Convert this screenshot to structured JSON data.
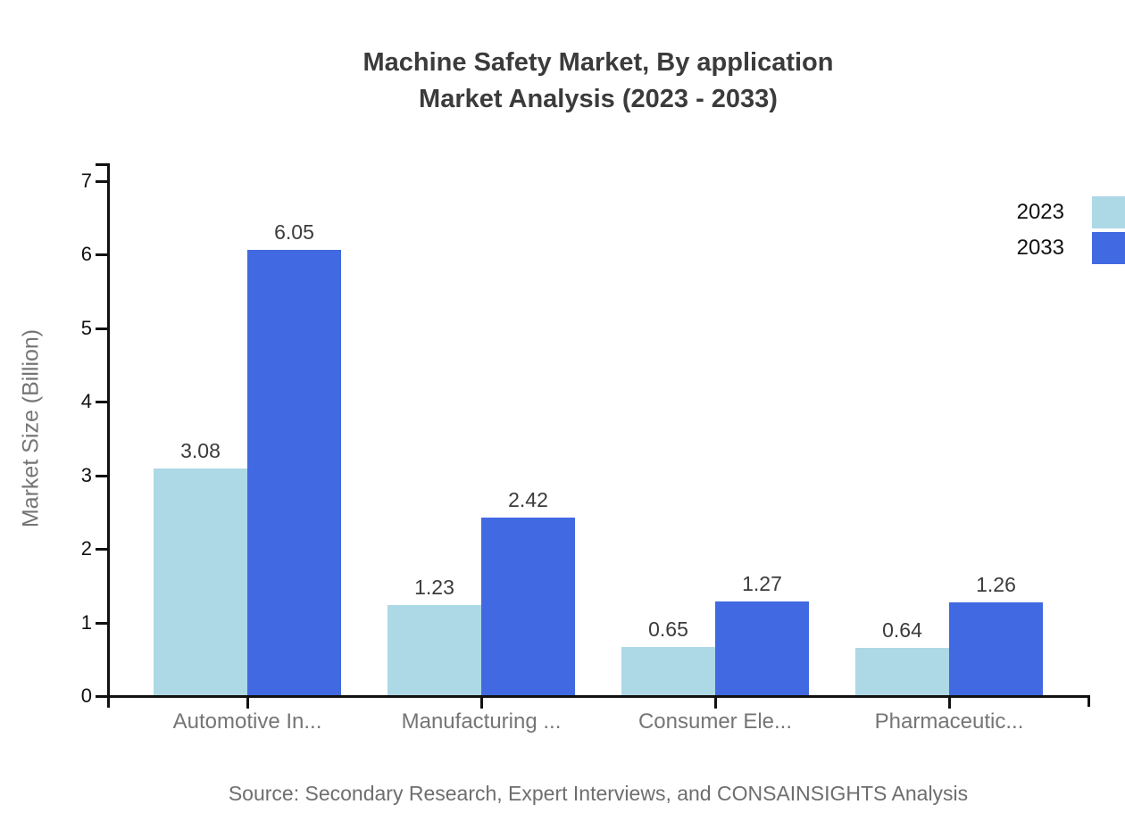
{
  "title": {
    "line1": "Machine Safety Market, By application",
    "line2": "Market Analysis (2023 - 2033)"
  },
  "source_caption": "Source: Secondary Research, Expert Interviews, and CONSAINSIGHTS Analysis",
  "legend": {
    "items": [
      {
        "label": "2023",
        "color": "#ADD8E6"
      },
      {
        "label": "2033",
        "color": "#4169E1"
      }
    ]
  },
  "chart_data": {
    "type": "bar",
    "title": "Machine Safety Market, By application Market Analysis (2023 - 2033)",
    "categories": [
      "Automotive In...",
      "Manufacturing ...",
      "Consumer Ele...",
      "Pharmaceutic..."
    ],
    "series": [
      {
        "name": "2023",
        "color": "#ADD8E6",
        "values": [
          3.08,
          1.23,
          0.65,
          0.64
        ]
      },
      {
        "name": "2033",
        "color": "#4169E1",
        "values": [
          6.05,
          2.42,
          1.27,
          1.26
        ]
      }
    ],
    "xlabel": "",
    "ylabel": "Market Size (Billion)",
    "ylim": [
      0,
      7
    ],
    "yticks": [
      0,
      1,
      2,
      3,
      4,
      5,
      6,
      7
    ],
    "grid": false,
    "legend_position": "top-right",
    "value_labels": true
  }
}
